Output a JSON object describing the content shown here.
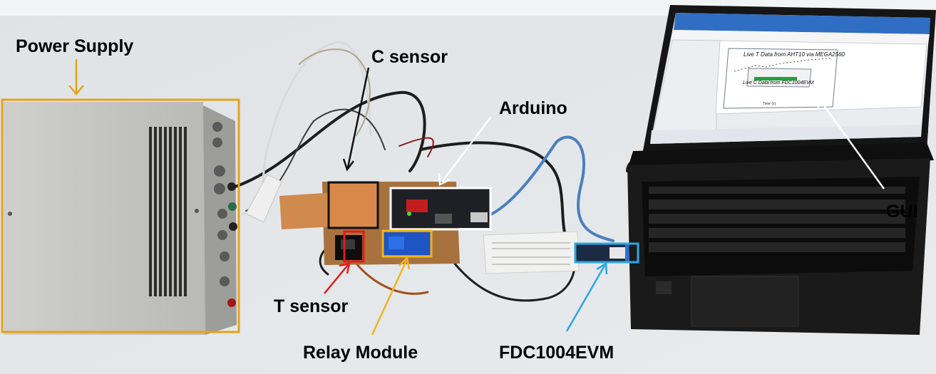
{
  "labels": {
    "power_supply": "Power Supply",
    "c_sensor": "C sensor",
    "arduino": "Arduino",
    "gui": "GUI",
    "t_sensor": "T sensor",
    "relay_module": "Relay Module",
    "fdc": "FDC1004EVM"
  },
  "screen": {
    "plot_title": "Live T Data from AHT10 via MEGA2560",
    "plot_subtitle": "Live C Data from FDC1004EVM",
    "axis_label": "Time (s)"
  },
  "colors": {
    "power_supply_box": "#e6a21a",
    "c_sensor_box": "#111111",
    "arduino_box": "#ffffff",
    "gui_arrow": "#ffffff",
    "t_sensor_box": "#e01b1b",
    "relay_box": "#f0b41c",
    "fdc_box": "#29a6e6"
  }
}
